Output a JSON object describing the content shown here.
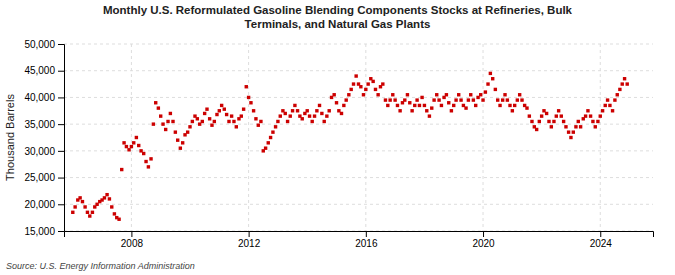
{
  "chart_data": {
    "type": "scatter",
    "title": "Monthly U.S. Reformulated Gasoline Blending Components Stocks at Refineries, Bulk\nTerminals, and Natural Gas Plants",
    "y_label": "Thousand Barrels",
    "annotations": [
      "Source: U.S. Energy Information Administration"
    ],
    "color": "#cc0000",
    "marker": "square",
    "grid": true,
    "xlim": [
      2005.7,
      2025.8
    ],
    "xticks": [
      2008,
      2012,
      2016,
      2020,
      2024
    ],
    "ylim": [
      15000,
      50000
    ],
    "yticks": [
      {
        "value": 15000,
        "label": "15,000"
      },
      {
        "value": 20000,
        "label": "20,000"
      },
      {
        "value": 25000,
        "label": "25,000"
      },
      {
        "value": 30000,
        "label": "30,000"
      },
      {
        "value": 35000,
        "label": "35,000"
      },
      {
        "value": 40000,
        "label": "40,000"
      },
      {
        "value": 45000,
        "label": "45,000"
      },
      {
        "value": 50000,
        "label": "50,000"
      }
    ],
    "x": [
      2006,
      2006.08,
      2006.17,
      2006.25,
      2006.33,
      2006.42,
      2006.5,
      2006.58,
      2006.67,
      2006.75,
      2006.83,
      2006.92,
      2007,
      2007.08,
      2007.17,
      2007.25,
      2007.33,
      2007.42,
      2007.5,
      2007.58,
      2007.67,
      2007.75,
      2007.83,
      2007.92,
      2008,
      2008.08,
      2008.17,
      2008.25,
      2008.33,
      2008.42,
      2008.5,
      2008.58,
      2008.67,
      2008.75,
      2008.83,
      2008.92,
      2009,
      2009.08,
      2009.17,
      2009.25,
      2009.33,
      2009.42,
      2009.5,
      2009.58,
      2009.67,
      2009.75,
      2009.83,
      2009.92,
      2010,
      2010.08,
      2010.17,
      2010.25,
      2010.33,
      2010.42,
      2010.5,
      2010.58,
      2010.67,
      2010.75,
      2010.83,
      2010.92,
      2011,
      2011.08,
      2011.17,
      2011.25,
      2011.33,
      2011.42,
      2011.5,
      2011.58,
      2011.67,
      2011.75,
      2011.83,
      2011.92,
      2012,
      2012.08,
      2012.17,
      2012.25,
      2012.33,
      2012.42,
      2012.5,
      2012.58,
      2012.67,
      2012.75,
      2012.83,
      2012.92,
      2013,
      2013.08,
      2013.17,
      2013.25,
      2013.33,
      2013.42,
      2013.5,
      2013.58,
      2013.67,
      2013.75,
      2013.83,
      2013.92,
      2014,
      2014.08,
      2014.17,
      2014.25,
      2014.33,
      2014.42,
      2014.5,
      2014.58,
      2014.67,
      2014.75,
      2014.83,
      2014.92,
      2015,
      2015.08,
      2015.17,
      2015.25,
      2015.33,
      2015.42,
      2015.5,
      2015.58,
      2015.67,
      2015.75,
      2015.83,
      2015.92,
      2016,
      2016.08,
      2016.17,
      2016.25,
      2016.33,
      2016.42,
      2016.5,
      2016.58,
      2016.67,
      2016.75,
      2016.83,
      2016.92,
      2017,
      2017.08,
      2017.17,
      2017.25,
      2017.33,
      2017.42,
      2017.5,
      2017.58,
      2017.67,
      2017.75,
      2017.83,
      2017.92,
      2018,
      2018.08,
      2018.17,
      2018.25,
      2018.33,
      2018.42,
      2018.5,
      2018.58,
      2018.67,
      2018.75,
      2018.83,
      2018.92,
      2019,
      2019.08,
      2019.17,
      2019.25,
      2019.33,
      2019.42,
      2019.5,
      2019.58,
      2019.67,
      2019.75,
      2019.83,
      2019.92,
      2020,
      2020.08,
      2020.17,
      2020.25,
      2020.33,
      2020.42,
      2020.5,
      2020.58,
      2020.67,
      2020.75,
      2020.83,
      2020.92,
      2021,
      2021.08,
      2021.17,
      2021.25,
      2021.33,
      2021.42,
      2021.5,
      2021.58,
      2021.67,
      2021.75,
      2021.83,
      2021.92,
      2022,
      2022.08,
      2022.17,
      2022.25,
      2022.33,
      2022.42,
      2022.5,
      2022.58,
      2022.67,
      2022.75,
      2022.83,
      2022.92,
      2023,
      2023.08,
      2023.17,
      2023.25,
      2023.33,
      2023.42,
      2023.5,
      2023.58,
      2023.67,
      2023.75,
      2023.83,
      2023.92,
      2024,
      2024.08,
      2024.17,
      2024.25,
      2024.33,
      2024.42,
      2024.5,
      2024.58,
      2024.67,
      2024.75,
      2024.83,
      2024.92
    ],
    "values": [
      18500,
      19500,
      20800,
      21200,
      20500,
      19500,
      18500,
      17800,
      18500,
      19500,
      20000,
      20500,
      20800,
      21200,
      21800,
      21000,
      19500,
      18200,
      17500,
      17200,
      26500,
      31500,
      30800,
      30200,
      30800,
      31500,
      32500,
      31000,
      30000,
      29500,
      28000,
      27000,
      28500,
      35000,
      39000,
      38000,
      36500,
      35000,
      34000,
      35500,
      37000,
      35500,
      33500,
      32000,
      30500,
      31500,
      33000,
      33500,
      34500,
      35500,
      36500,
      36000,
      35000,
      35500,
      37000,
      37800,
      36000,
      34800,
      35500,
      36800,
      37500,
      38500,
      37800,
      36800,
      35500,
      36500,
      35500,
      34500,
      36000,
      36500,
      37800,
      42000,
      40000,
      39000,
      37500,
      36000,
      34800,
      35500,
      30000,
      30500,
      31500,
      32500,
      33500,
      34500,
      35500,
      36500,
      37500,
      37000,
      35500,
      36500,
      37500,
      38500,
      37500,
      36500,
      36000,
      37000,
      37500,
      36500,
      35500,
      36500,
      37500,
      38500,
      37000,
      35500,
      36500,
      37500,
      40000,
      40500,
      39000,
      37500,
      37000,
      38500,
      39500,
      40500,
      41500,
      42500,
      44000,
      42500,
      42000,
      40500,
      41500,
      42500,
      43500,
      43000,
      41500,
      40500,
      42000,
      42500,
      39500,
      38500,
      39500,
      40500,
      39500,
      38500,
      37500,
      39000,
      39500,
      40500,
      39000,
      37500,
      38500,
      39500,
      38500,
      40000,
      38500,
      37500,
      36500,
      38000,
      39500,
      40500,
      39500,
      38500,
      40000,
      40500,
      39000,
      37500,
      38500,
      39500,
      40500,
      39500,
      38500,
      38000,
      39500,
      40500,
      39500,
      38500,
      40000,
      40500,
      39500,
      41000,
      42500,
      44500,
      43500,
      41500,
      39500,
      38500,
      39500,
      40500,
      39500,
      38500,
      37500,
      38500,
      39500,
      40500,
      39500,
      38500,
      38000,
      36500,
      35500,
      34500,
      34000,
      35500,
      36500,
      37500,
      37000,
      35500,
      34500,
      35500,
      36500,
      37500,
      36500,
      35500,
      34500,
      33500,
      32500,
      33500,
      34500,
      35500,
      34500,
      36000,
      36500,
      37500,
      36500,
      35500,
      34500,
      35500,
      36500,
      37500,
      38500,
      39500,
      38500,
      37500,
      39500,
      40500,
      41500,
      42500,
      43500,
      42500
    ]
  }
}
